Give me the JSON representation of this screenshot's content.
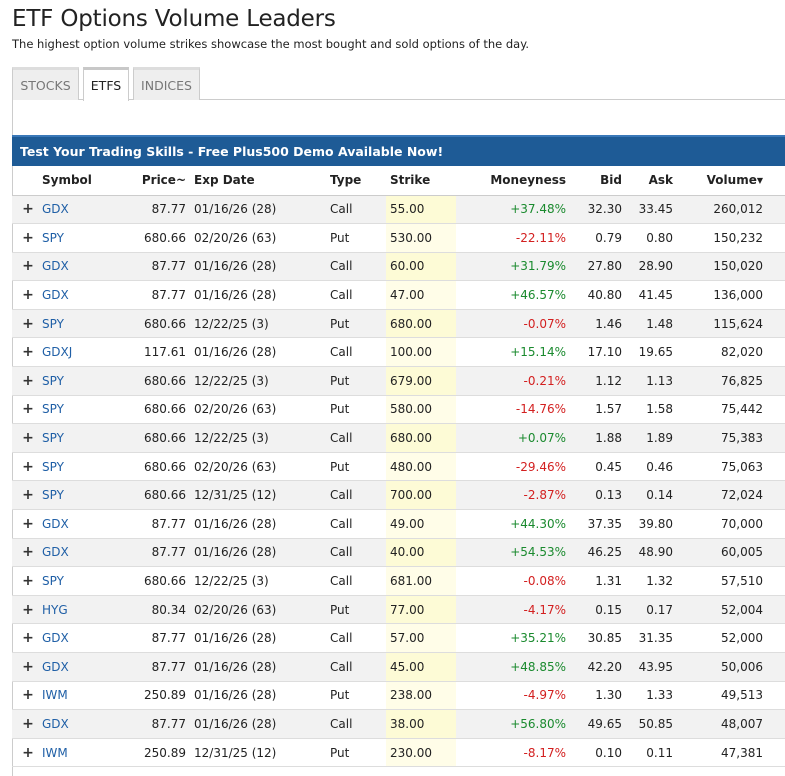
{
  "page": {
    "title": "ETF Options Volume Leaders",
    "subtitle": "The highest option volume strikes showcase the most bought and sold options of the day."
  },
  "tabs": [
    {
      "label": "STOCKS",
      "active": false
    },
    {
      "label": "ETFS",
      "active": true
    },
    {
      "label": "INDICES",
      "active": false
    }
  ],
  "banner": "Test Your Trading Skills - Free Plus500 Demo Available Now!",
  "columns": {
    "symbol": "Symbol",
    "price": "Price~",
    "exp_date": "Exp Date",
    "type": "Type",
    "strike": "Strike",
    "moneyness": "Moneyness",
    "bid": "Bid",
    "ask": "Ask",
    "volume": "Volume",
    "volume_sort_icon": "caret-down-icon"
  },
  "colors": {
    "positive": "#1a8a2e",
    "negative": "#d32020",
    "banner": "#1e5b96",
    "link": "#1f5fa6"
  },
  "rows": [
    {
      "symbol": "GDX",
      "price": "87.77",
      "exp": "01/16/26 (28)",
      "type": "Call",
      "strike": "55.00",
      "moneyness": "+37.48%",
      "bid": "32.30",
      "ask": "33.45",
      "volume": "260,012"
    },
    {
      "symbol": "SPY",
      "price": "680.66",
      "exp": "02/20/26 (63)",
      "type": "Put",
      "strike": "530.00",
      "moneyness": "-22.11%",
      "bid": "0.79",
      "ask": "0.80",
      "volume": "150,232"
    },
    {
      "symbol": "GDX",
      "price": "87.77",
      "exp": "01/16/26 (28)",
      "type": "Call",
      "strike": "60.00",
      "moneyness": "+31.79%",
      "bid": "27.80",
      "ask": "28.90",
      "volume": "150,020"
    },
    {
      "symbol": "GDX",
      "price": "87.77",
      "exp": "01/16/26 (28)",
      "type": "Call",
      "strike": "47.00",
      "moneyness": "+46.57%",
      "bid": "40.80",
      "ask": "41.45",
      "volume": "136,000"
    },
    {
      "symbol": "SPY",
      "price": "680.66",
      "exp": "12/22/25 (3)",
      "type": "Put",
      "strike": "680.00",
      "moneyness": "-0.07%",
      "bid": "1.46",
      "ask": "1.48",
      "volume": "115,624"
    },
    {
      "symbol": "GDXJ",
      "price": "117.61",
      "exp": "01/16/26 (28)",
      "type": "Call",
      "strike": "100.00",
      "moneyness": "+15.14%",
      "bid": "17.10",
      "ask": "19.65",
      "volume": "82,020"
    },
    {
      "symbol": "SPY",
      "price": "680.66",
      "exp": "12/22/25 (3)",
      "type": "Put",
      "strike": "679.00",
      "moneyness": "-0.21%",
      "bid": "1.12",
      "ask": "1.13",
      "volume": "76,825"
    },
    {
      "symbol": "SPY",
      "price": "680.66",
      "exp": "02/20/26 (63)",
      "type": "Put",
      "strike": "580.00",
      "moneyness": "-14.76%",
      "bid": "1.57",
      "ask": "1.58",
      "volume": "75,442"
    },
    {
      "symbol": "SPY",
      "price": "680.66",
      "exp": "12/22/25 (3)",
      "type": "Call",
      "strike": "680.00",
      "moneyness": "+0.07%",
      "bid": "1.88",
      "ask": "1.89",
      "volume": "75,383"
    },
    {
      "symbol": "SPY",
      "price": "680.66",
      "exp": "02/20/26 (63)",
      "type": "Put",
      "strike": "480.00",
      "moneyness": "-29.46%",
      "bid": "0.45",
      "ask": "0.46",
      "volume": "75,063"
    },
    {
      "symbol": "SPY",
      "price": "680.66",
      "exp": "12/31/25 (12)",
      "type": "Call",
      "strike": "700.00",
      "moneyness": "-2.87%",
      "bid": "0.13",
      "ask": "0.14",
      "volume": "72,024"
    },
    {
      "symbol": "GDX",
      "price": "87.77",
      "exp": "01/16/26 (28)",
      "type": "Call",
      "strike": "49.00",
      "moneyness": "+44.30%",
      "bid": "37.35",
      "ask": "39.80",
      "volume": "70,000"
    },
    {
      "symbol": "GDX",
      "price": "87.77",
      "exp": "01/16/26 (28)",
      "type": "Call",
      "strike": "40.00",
      "moneyness": "+54.53%",
      "bid": "46.25",
      "ask": "48.90",
      "volume": "60,005"
    },
    {
      "symbol": "SPY",
      "price": "680.66",
      "exp": "12/22/25 (3)",
      "type": "Call",
      "strike": "681.00",
      "moneyness": "-0.08%",
      "bid": "1.31",
      "ask": "1.32",
      "volume": "57,510"
    },
    {
      "symbol": "HYG",
      "price": "80.34",
      "exp": "02/20/26 (63)",
      "type": "Put",
      "strike": "77.00",
      "moneyness": "-4.17%",
      "bid": "0.15",
      "ask": "0.17",
      "volume": "52,004"
    },
    {
      "symbol": "GDX",
      "price": "87.77",
      "exp": "01/16/26 (28)",
      "type": "Call",
      "strike": "57.00",
      "moneyness": "+35.21%",
      "bid": "30.85",
      "ask": "31.35",
      "volume": "52,000"
    },
    {
      "symbol": "GDX",
      "price": "87.77",
      "exp": "01/16/26 (28)",
      "type": "Call",
      "strike": "45.00",
      "moneyness": "+48.85%",
      "bid": "42.20",
      "ask": "43.95",
      "volume": "50,006"
    },
    {
      "symbol": "IWM",
      "price": "250.89",
      "exp": "01/16/26 (28)",
      "type": "Put",
      "strike": "238.00",
      "moneyness": "-4.97%",
      "bid": "1.30",
      "ask": "1.33",
      "volume": "49,513"
    },
    {
      "symbol": "GDX",
      "price": "87.77",
      "exp": "01/16/26 (28)",
      "type": "Call",
      "strike": "38.00",
      "moneyness": "+56.80%",
      "bid": "49.65",
      "ask": "50.85",
      "volume": "48,007"
    },
    {
      "symbol": "IWM",
      "price": "250.89",
      "exp": "12/31/25 (12)",
      "type": "Put",
      "strike": "230.00",
      "moneyness": "-8.17%",
      "bid": "0.10",
      "ask": "0.11",
      "volume": "47,381"
    }
  ]
}
